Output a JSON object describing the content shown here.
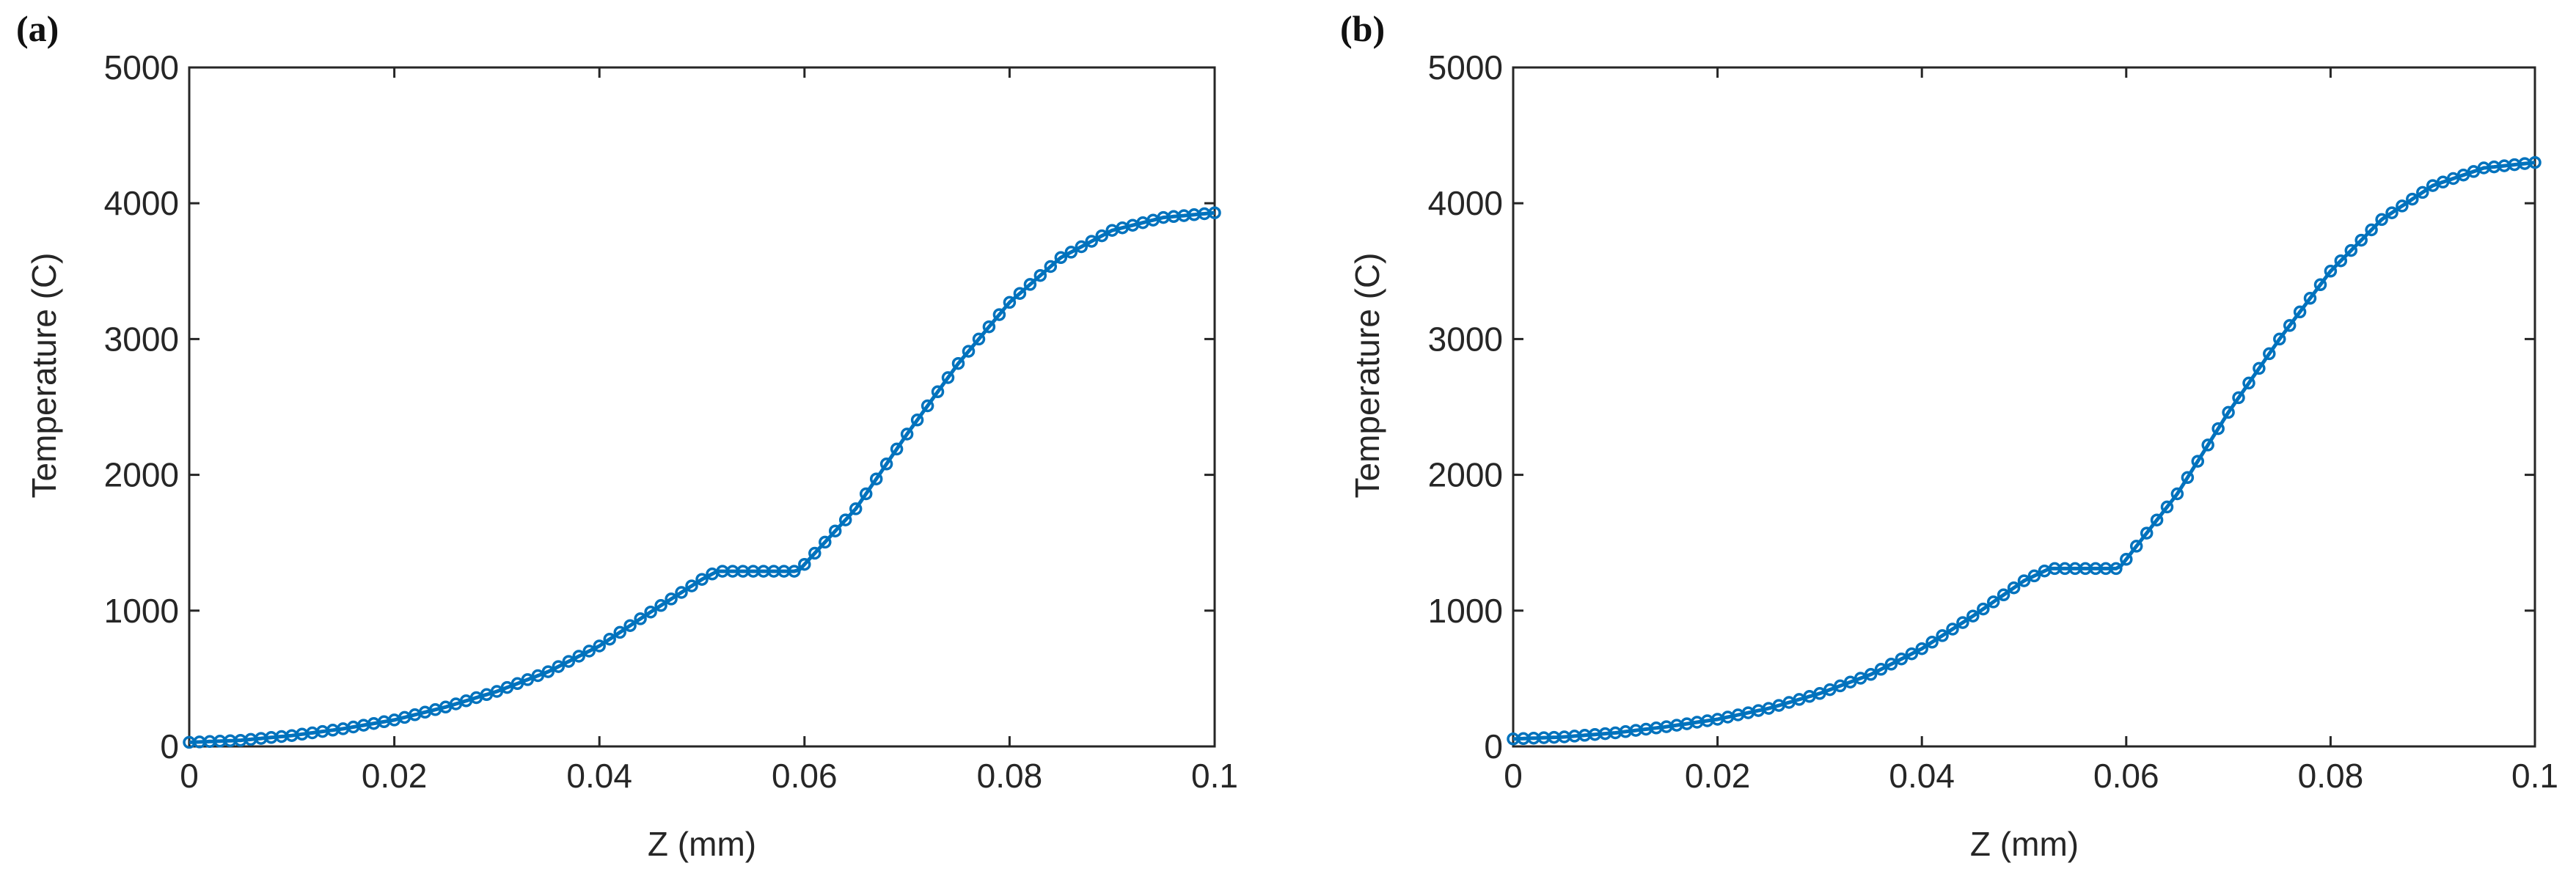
{
  "chart_data": [
    {
      "type": "line",
      "panel_label": "(a)",
      "xlabel": "Z (mm)",
      "ylabel": "Temperature (C)",
      "xlim": [
        0,
        0.1
      ],
      "ylim": [
        0,
        5000
      ],
      "xticks": [
        "0",
        "0.02",
        "0.04",
        "0.06",
        "0.08",
        "0.1"
      ],
      "xtick_values": [
        0,
        0.02,
        0.04,
        0.06,
        0.08,
        0.1
      ],
      "yticks": [
        "0",
        "1000",
        "2000",
        "3000",
        "4000",
        "5000"
      ],
      "ytick_values": [
        0,
        1000,
        2000,
        3000,
        4000,
        5000
      ],
      "grid": false,
      "color": "#0072BD",
      "marker": "circle",
      "series": [
        {
          "x": [
            0.0,
            0.005,
            0.01,
            0.015,
            0.02,
            0.025,
            0.03,
            0.035,
            0.04,
            0.045,
            0.05,
            0.0515,
            0.055,
            0.059,
            0.0595,
            0.065,
            0.07,
            0.075,
            0.08,
            0.085,
            0.09,
            0.095,
            0.1
          ],
          "y": [
            30,
            45,
            80,
            130,
            195,
            290,
            405,
            550,
            740,
            990,
            1230,
            1290,
            1290,
            1290,
            1300,
            1750,
            2300,
            2820,
            3270,
            3600,
            3800,
            3895,
            3930
          ]
        }
      ]
    },
    {
      "type": "line",
      "panel_label": "(b)",
      "xlabel": "Z (mm)",
      "ylabel": "Temperature (C)",
      "xlim": [
        0,
        0.1
      ],
      "ylim": [
        0,
        5000
      ],
      "xticks": [
        "0",
        "0.02",
        "0.04",
        "0.06",
        "0.08",
        "0.1"
      ],
      "xtick_values": [
        0,
        0.02,
        0.04,
        0.06,
        0.08,
        0.1
      ],
      "yticks": [
        "0",
        "1000",
        "2000",
        "3000",
        "4000",
        "5000"
      ],
      "ytick_values": [
        0,
        1000,
        2000,
        3000,
        4000,
        5000
      ],
      "grid": false,
      "color": "#0072BD",
      "marker": "circle",
      "series": [
        {
          "x": [
            0.0,
            0.005,
            0.01,
            0.015,
            0.02,
            0.025,
            0.03,
            0.035,
            0.04,
            0.045,
            0.05,
            0.0525,
            0.055,
            0.059,
            0.0595,
            0.065,
            0.07,
            0.075,
            0.08,
            0.085,
            0.09,
            0.095,
            0.1
          ],
          "y": [
            55,
            70,
            100,
            145,
            200,
            280,
            390,
            530,
            720,
            960,
            1220,
            1310,
            1310,
            1310,
            1330,
            1860,
            2460,
            3000,
            3500,
            3880,
            4130,
            4260,
            4300
          ]
        }
      ]
    }
  ]
}
